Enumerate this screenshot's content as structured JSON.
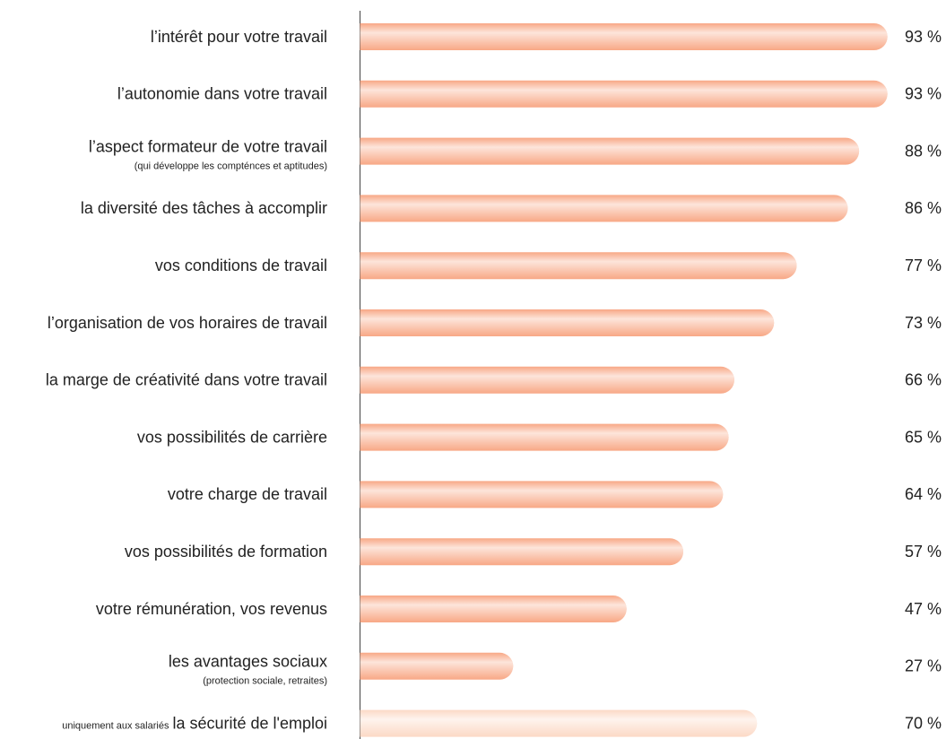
{
  "chart_data": {
    "type": "bar",
    "orientation": "horizontal",
    "categories": [
      "l’intérêt pour votre travail",
      "l’autonomie dans votre travail",
      "l’aspect formateur de votre travail",
      "la diversité des tâches à accomplir",
      "vos conditions de travail",
      "l’organisation de vos horaires de travail",
      "la marge de créativité dans votre travail",
      "vos possibilités de carrière",
      "votre charge de travail",
      "vos possibilités de formation",
      "votre rémunération, vos revenus",
      "les avantages sociaux",
      "la sécurité de l'emploi"
    ],
    "sublabels": [
      null,
      null,
      "(qui développe les compténces et aptitudes)",
      null,
      null,
      null,
      null,
      null,
      null,
      null,
      null,
      "(protection sociale, retraites)",
      null
    ],
    "prefixes": [
      null,
      null,
      null,
      null,
      null,
      null,
      null,
      null,
      null,
      null,
      null,
      null,
      "uniquement aux salariés"
    ],
    "values": [
      93,
      93,
      88,
      86,
      77,
      73,
      66,
      65,
      64,
      57,
      47,
      27,
      70
    ],
    "value_labels": [
      "93 %",
      "93 %",
      "88 %",
      "86 %",
      "77 %",
      "73 %",
      "66 %",
      "65 %",
      "64 %",
      "57 %",
      "47 %",
      "27 %",
      "70 %"
    ],
    "colors": [
      "#f8a886",
      "#f8a886",
      "#f8a886",
      "#f8a886",
      "#f8a886",
      "#f8a886",
      "#f8a886",
      "#f8a886",
      "#f8a886",
      "#f8a886",
      "#f8a886",
      "#f8a886",
      "#fcd9c6"
    ],
    "xlim": [
      0,
      100
    ]
  }
}
